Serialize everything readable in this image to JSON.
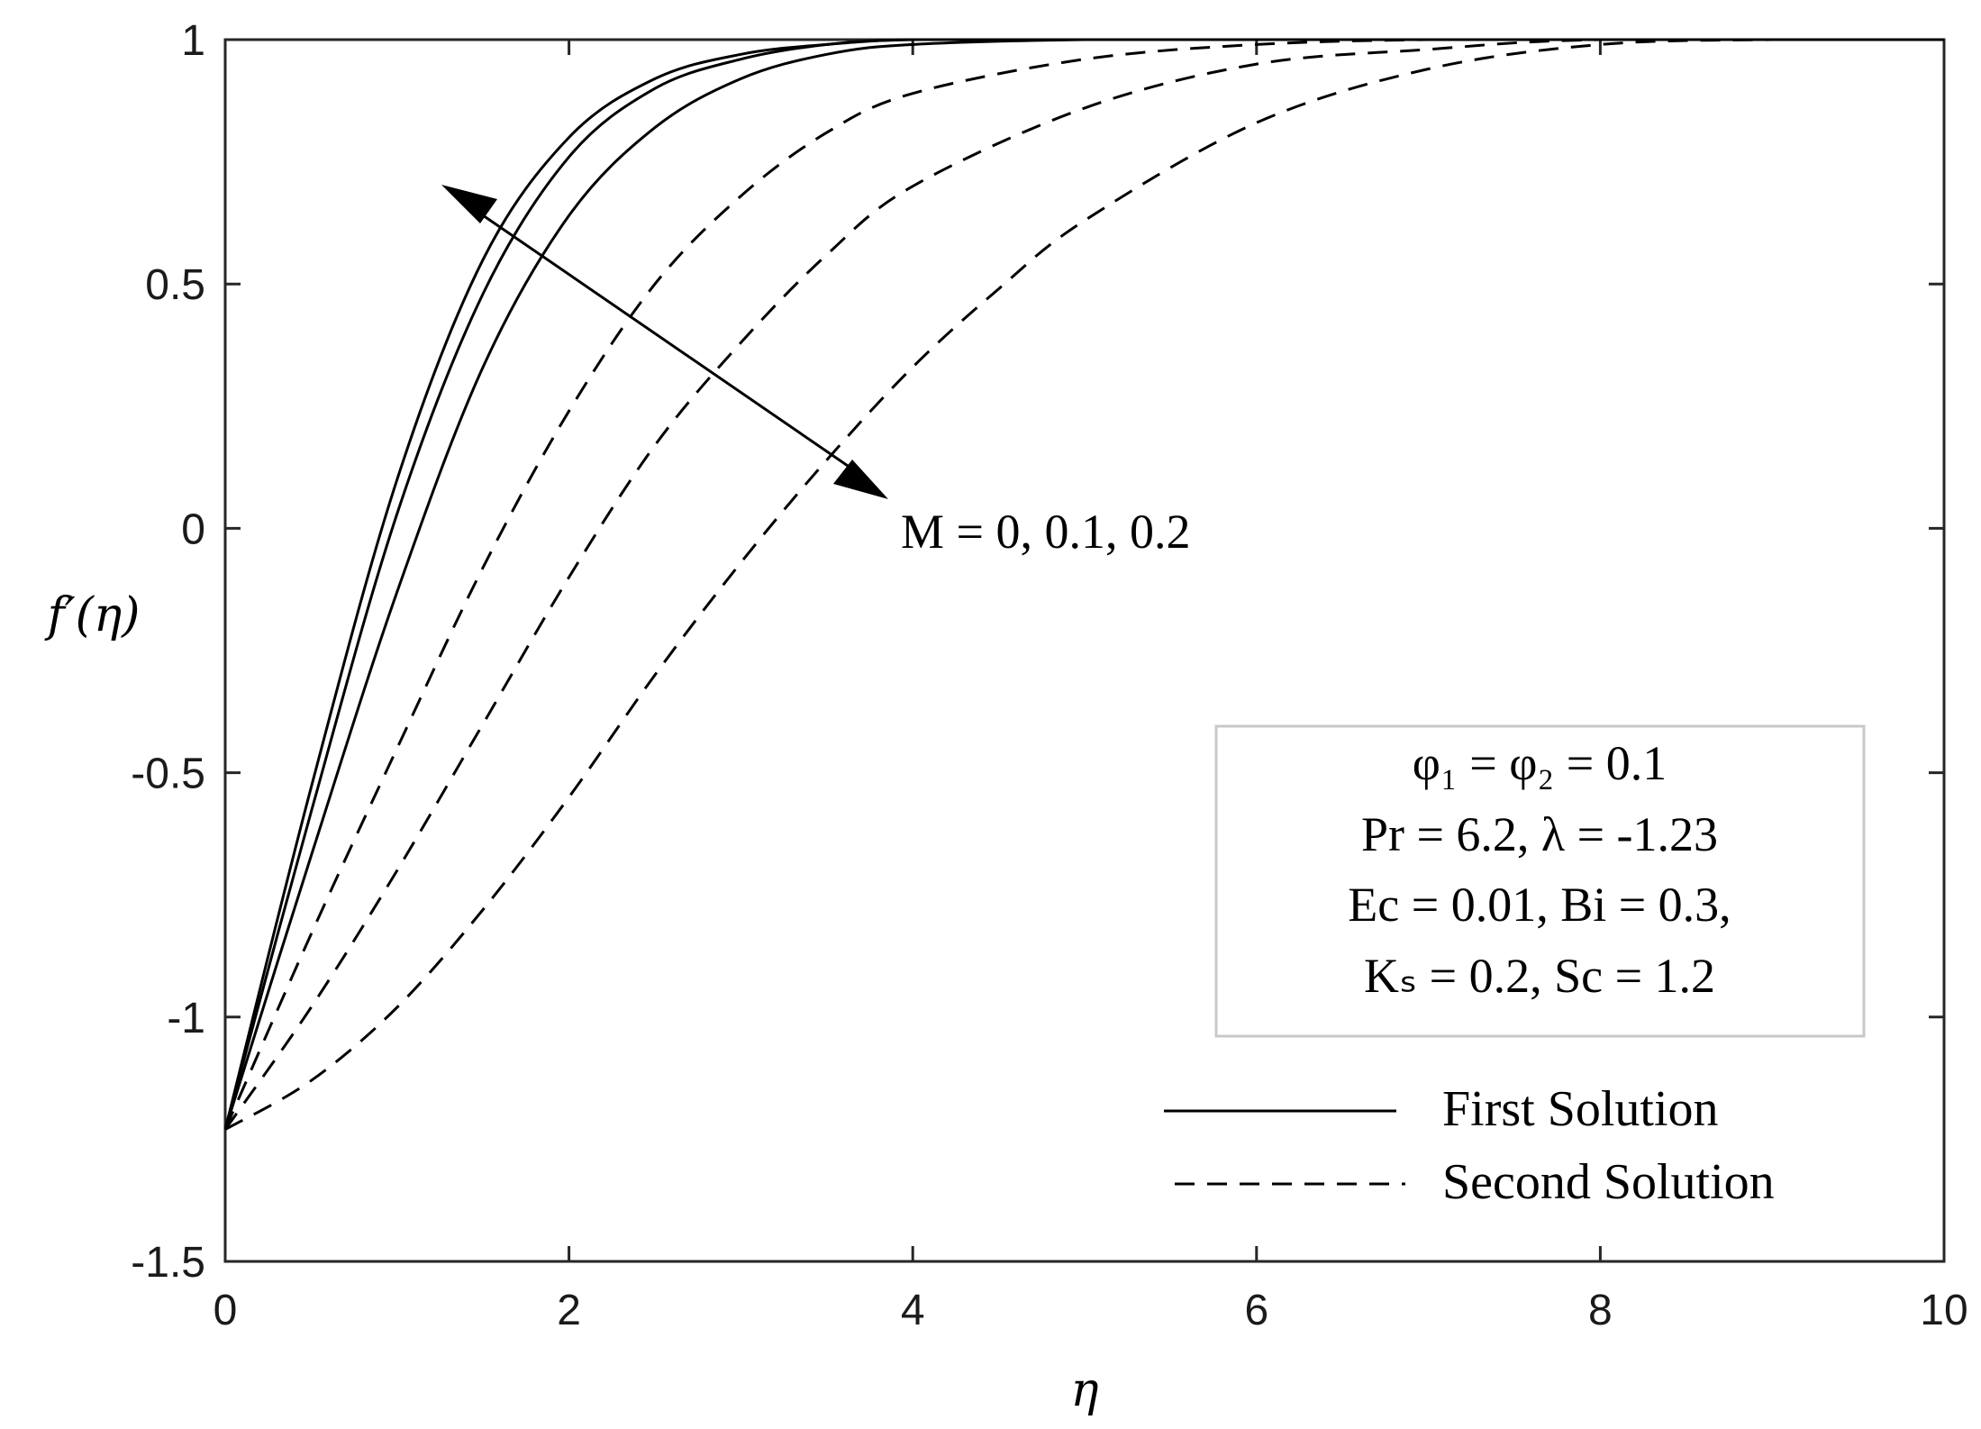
{
  "chart_data": {
    "type": "line",
    "title": "",
    "xlabel": "η",
    "ylabel": "f′(η)",
    "xlim": [
      0,
      10
    ],
    "ylim": [
      -1.5,
      1
    ],
    "xticks": [
      "0",
      "2",
      "4",
      "6",
      "8",
      "10"
    ],
    "yticks": [
      "1",
      "0.5",
      "0",
      "-0.5",
      "-1",
      "-1.5"
    ],
    "grid": false,
    "legend_position": "bottom-right",
    "legend": [
      "First Solution",
      "Second Solution"
    ],
    "annotation": "M = 0, 0.1, 0.2",
    "param_box": [
      "φ₁ = φ₂ = 0.1",
      "Pr = 6.2, λ = -1.23",
      "Ec = 0.01, Bi = 0.3,",
      "Kₛ = 0.2, Sc = 1.2"
    ],
    "series": [
      {
        "style": "solid",
        "x": [
          0,
          0.5,
          1,
          1.5,
          2,
          2.5,
          3,
          3.5,
          4,
          5,
          6,
          8,
          10
        ],
        "y": [
          -1.23,
          -0.53,
          0.1,
          0.55,
          0.8,
          0.92,
          0.97,
          0.99,
          1.0,
          1.0,
          1.0,
          1.0,
          1.0
        ]
      },
      {
        "style": "solid",
        "x": [
          0,
          0.5,
          1,
          1.5,
          2,
          2.5,
          3,
          3.5,
          4,
          5,
          6,
          8,
          10
        ],
        "y": [
          -1.23,
          -0.58,
          0.03,
          0.48,
          0.76,
          0.9,
          0.96,
          0.99,
          1.0,
          1.0,
          1.0,
          1.0,
          1.0
        ]
      },
      {
        "style": "solid",
        "x": [
          0,
          0.5,
          1,
          1.5,
          2,
          2.5,
          3,
          3.5,
          4,
          5,
          6,
          8,
          10
        ],
        "y": [
          -1.23,
          -0.67,
          -0.13,
          0.33,
          0.64,
          0.82,
          0.92,
          0.97,
          0.99,
          1.0,
          1.0,
          1.0,
          1.0
        ]
      },
      {
        "style": "dashed",
        "x": [
          0,
          0.5,
          1,
          1.5,
          2,
          2.5,
          3,
          3.5,
          4,
          5,
          6,
          7,
          8,
          10
        ],
        "y": [
          -1.23,
          -0.83,
          -0.45,
          -0.08,
          0.24,
          0.5,
          0.68,
          0.81,
          0.89,
          0.96,
          0.99,
          1.0,
          1.0,
          1.0
        ]
      },
      {
        "style": "dashed",
        "x": [
          0,
          0.5,
          1,
          1.5,
          2,
          2.5,
          3,
          3.5,
          4,
          5,
          6,
          7,
          8,
          10
        ],
        "y": [
          -1.23,
          -0.98,
          -0.7,
          -0.4,
          -0.1,
          0.17,
          0.38,
          0.56,
          0.7,
          0.86,
          0.95,
          0.98,
          1.0,
          1.0
        ]
      },
      {
        "style": "dashed",
        "x": [
          0,
          0.5,
          1,
          1.5,
          2,
          2.5,
          3,
          3.5,
          4,
          4.5,
          5,
          6,
          7,
          8,
          9,
          10
        ],
        "y": [
          -1.23,
          -1.13,
          -0.98,
          -0.78,
          -0.55,
          -0.3,
          -0.07,
          0.14,
          0.33,
          0.49,
          0.63,
          0.83,
          0.94,
          0.99,
          1.0,
          1.0
        ]
      }
    ]
  }
}
